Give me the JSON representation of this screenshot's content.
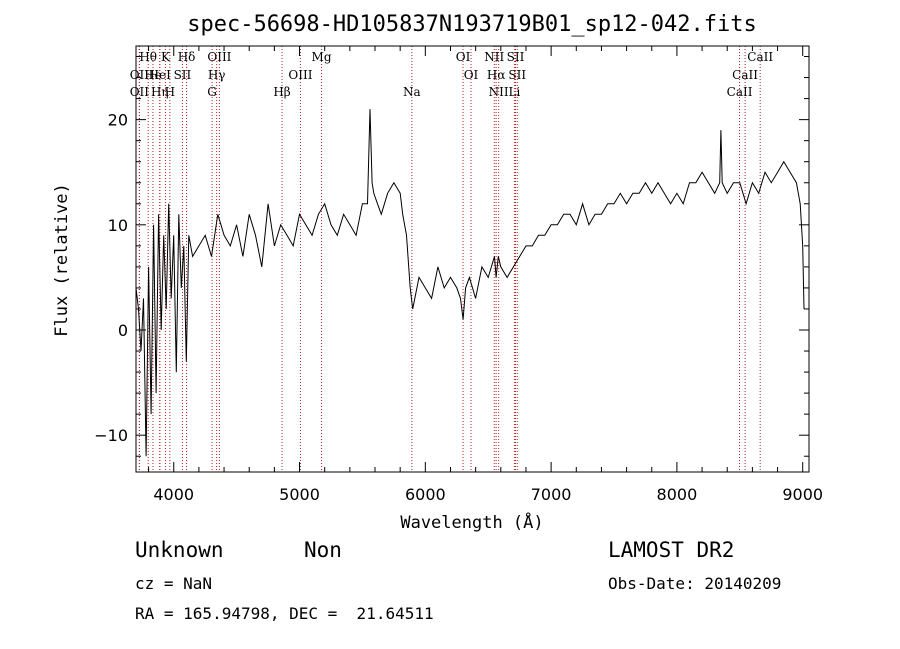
{
  "chart_data": {
    "type": "line",
    "title": "spec-56698-HD105837N193719B01_sp12-042.fits",
    "xlabel": "Wavelength (Å)",
    "ylabel": "Flux (relative)",
    "xlim": [
      3700,
      9050
    ],
    "ylim": [
      -13.5,
      27
    ],
    "x_ticks": [
      4000,
      5000,
      6000,
      7000,
      8000,
      9000
    ],
    "y_ticks": [
      -10,
      0,
      10,
      20
    ],
    "grid": false,
    "series": [
      {
        "color": "#000000",
        "x": [
          3700,
          3720,
          3740,
          3760,
          3780,
          3800,
          3820,
          3840,
          3860,
          3880,
          3900,
          3920,
          3940,
          3960,
          3980,
          4000,
          4020,
          4040,
          4060,
          4080,
          4100,
          4120,
          4150,
          4200,
          4250,
          4300,
          4350,
          4400,
          4450,
          4500,
          4550,
          4600,
          4650,
          4700,
          4750,
          4800,
          4850,
          4900,
          4950,
          5000,
          5050,
          5100,
          5150,
          5200,
          5250,
          5300,
          5350,
          5400,
          5450,
          5500,
          5540,
          5560,
          5577,
          5590,
          5620,
          5650,
          5700,
          5750,
          5800,
          5820,
          5850,
          5880,
          5900,
          5950,
          6000,
          6050,
          6100,
          6150,
          6200,
          6250,
          6280,
          6300,
          6320,
          6350,
          6400,
          6450,
          6500,
          6550,
          6563,
          6580,
          6600,
          6650,
          6700,
          6750,
          6800,
          6850,
          6900,
          6950,
          7000,
          7050,
          7100,
          7150,
          7200,
          7250,
          7300,
          7350,
          7400,
          7450,
          7500,
          7550,
          7600,
          7650,
          7700,
          7750,
          7800,
          7850,
          7900,
          7950,
          8000,
          8050,
          8100,
          8150,
          8200,
          8250,
          8300,
          8340,
          8350,
          8360,
          8400,
          8450,
          8500,
          8550,
          8600,
          8650,
          8700,
          8750,
          8800,
          8850,
          8900,
          8950,
          8980,
          9000,
          9010
        ],
        "y": [
          4,
          2,
          -2,
          3,
          -12,
          6,
          -8,
          10,
          -6,
          11,
          0,
          9,
          2,
          12,
          3,
          9,
          -4,
          11,
          4,
          8,
          -3,
          9,
          7,
          8,
          9,
          7,
          11,
          9,
          8,
          10,
          7,
          11,
          9,
          6,
          12,
          8,
          10,
          9,
          8,
          11,
          10,
          9,
          11,
          12,
          10,
          9,
          11,
          10,
          9,
          12,
          12,
          21,
          14,
          13,
          12,
          11,
          13,
          14,
          13,
          11,
          9,
          4,
          2,
          5,
          4,
          3,
          6,
          4,
          5,
          4,
          3,
          1,
          4,
          5,
          3,
          6,
          5,
          7,
          5,
          7,
          6,
          5,
          6,
          7,
          8,
          8,
          9,
          9,
          10,
          10,
          11,
          11,
          10,
          12,
          10,
          11,
          11,
          12,
          12,
          13,
          12,
          13,
          13,
          14,
          13,
          14,
          13,
          12,
          13,
          12,
          14,
          14,
          15,
          14,
          13,
          14,
          19,
          14,
          13,
          14,
          14,
          12,
          14,
          13,
          15,
          14,
          15,
          16,
          15,
          14,
          12,
          8,
          2
        ]
      }
    ],
    "line_markers": [
      {
        "label": "Hθ",
        "x": 3797,
        "row": 1
      },
      {
        "label": "OII",
        "x": 3727,
        "row": 2
      },
      {
        "label": "OII",
        "x": 3727,
        "row": 3
      },
      {
        "label": "He",
        "x": 3835,
        "row": 2
      },
      {
        "label": "Hη",
        "x": 3889,
        "row": 3
      },
      {
        "label": "K",
        "x": 3934,
        "row": 1
      },
      {
        "label": "HeI",
        "x": 3889,
        "row": 2
      },
      {
        "label": "H",
        "x": 3969,
        "row": 3
      },
      {
        "label": "SII",
        "x": 4069,
        "row": 2
      },
      {
        "label": "Hδ",
        "x": 4102,
        "row": 1
      },
      {
        "label": "OIII",
        "x": 4363,
        "row": 1
      },
      {
        "label": "Hγ",
        "x": 4341,
        "row": 2
      },
      {
        "label": "G",
        "x": 4305,
        "row": 3
      },
      {
        "label": "OIII",
        "x": 5007,
        "row": 2
      },
      {
        "label": "Hβ",
        "x": 4861,
        "row": 3
      },
      {
        "label": "Mg",
        "x": 5175,
        "row": 1
      },
      {
        "label": "Na",
        "x": 5893,
        "row": 3
      },
      {
        "label": "OI",
        "x": 6300,
        "row": 1
      },
      {
        "label": "OI",
        "x": 6363,
        "row": 2
      },
      {
        "label": "NII",
        "x": 6548,
        "row": 1
      },
      {
        "label": "SII",
        "x": 6717,
        "row": 1
      },
      {
        "label": "Hα",
        "x": 6563,
        "row": 2
      },
      {
        "label": "SII",
        "x": 6731,
        "row": 2
      },
      {
        "label": "NII",
        "x": 6583,
        "row": 3
      },
      {
        "label": "Li",
        "x": 6708,
        "row": 3
      },
      {
        "label": "CaII",
        "x": 8662,
        "row": 1
      },
      {
        "label": "CaII",
        "x": 8542,
        "row": 2
      },
      {
        "label": "CaII",
        "x": 8498,
        "row": 3
      }
    ]
  },
  "info": {
    "class": "Unknown",
    "subclass": "Non",
    "survey": "LAMOST DR2",
    "cz": "cz = NaN",
    "obs_date": "Obs-Date: 20140209",
    "coords": "RA = 165.94798, DEC =  21.64511"
  }
}
